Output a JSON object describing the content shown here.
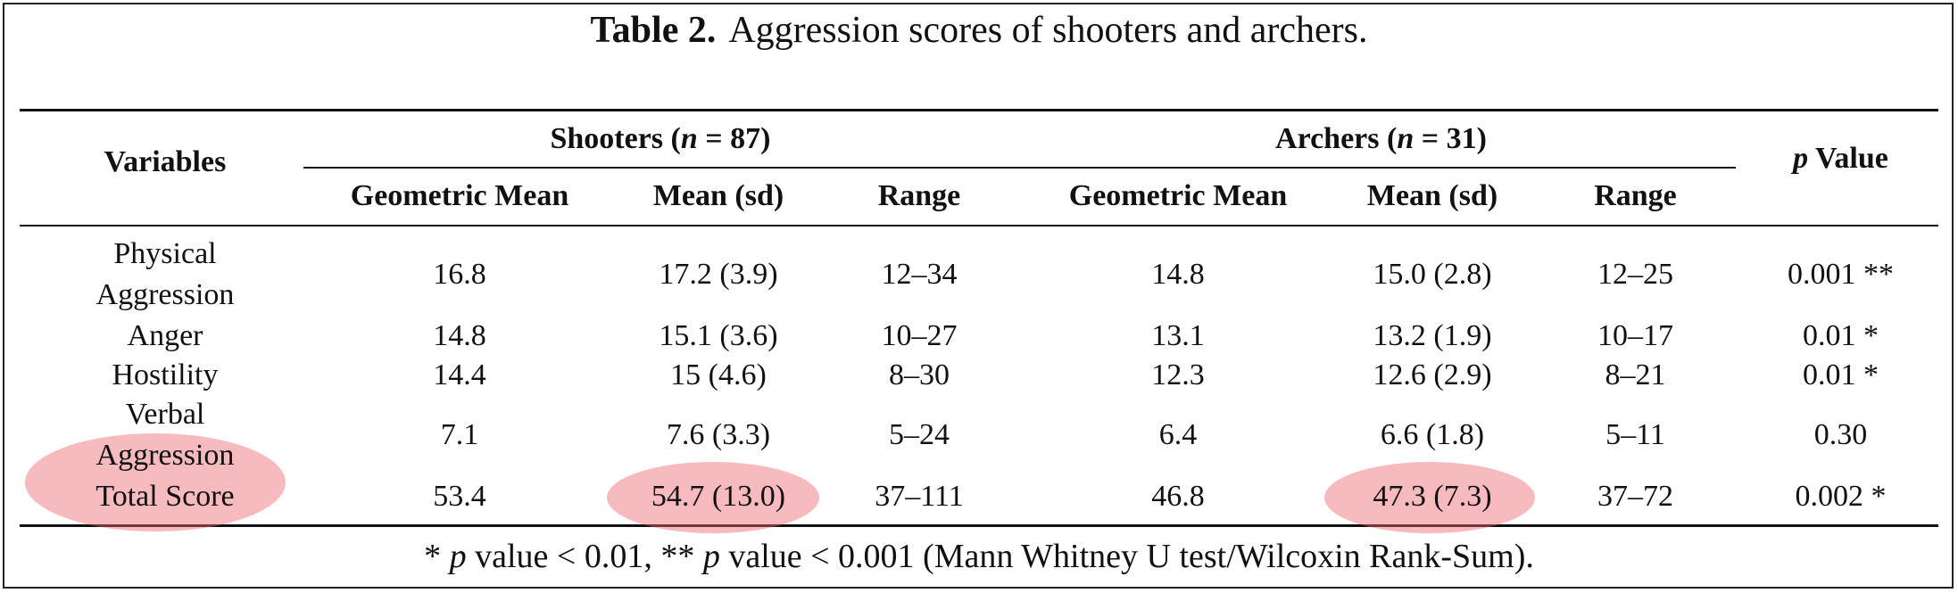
{
  "caption": {
    "label": "Table 2.",
    "text": "Aggression scores of shooters and archers."
  },
  "headers": {
    "variables": "Variables",
    "shooters": {
      "prefix": "Shooters (",
      "n_symbol": "n",
      "suffix": " = 87)"
    },
    "archers": {
      "prefix": "Archers (",
      "n_symbol": "n",
      "suffix": " = 31)"
    },
    "p_value": {
      "symbol": "p",
      "text": " Value"
    },
    "sub": [
      "Geometric Mean",
      "Mean (sd)",
      "Range",
      "Geometric Mean",
      "Mean (sd)",
      "Range"
    ]
  },
  "rows": [
    {
      "variable_line1": "Physical",
      "variable_line2": "Aggression",
      "cells": [
        "16.8",
        "17.2 (3.9)",
        "12–34",
        "14.8",
        "15.0 (2.8)",
        "12–25",
        "0.001 **"
      ]
    },
    {
      "variable_line1": "Anger",
      "cells": [
        "14.8",
        "15.1 (3.6)",
        "10–27",
        "13.1",
        "13.2 (1.9)",
        "10–17",
        "0.01 *"
      ]
    },
    {
      "variable_line1": "Hostility",
      "cells": [
        "14.4",
        "15 (4.6)",
        "8–30",
        "12.3",
        "12.6 (2.9)",
        "8–21",
        "0.01 *"
      ]
    },
    {
      "variable_line1": "Verbal",
      "variable_line2": "Aggression",
      "cells": [
        "7.1",
        "7.6 (3.3)",
        "5–24",
        "6.4",
        "6.6 (1.8)",
        "5–11",
        "0.30"
      ]
    },
    {
      "variable_line1": "Total Score",
      "cells": [
        "53.4",
        "54.7 (13.0)",
        "37–111",
        "46.8",
        "47.3 (7.3)",
        "37–72",
        "0.002 *"
      ]
    }
  ],
  "footnote": {
    "part1_symbol": "p",
    "part1_text": " value < 0.01, ** ",
    "part2_symbol": "p",
    "part2_text": " value < 0.001 (Mann Whitney U test/Wilcoxin Rank-Sum).",
    "lead": "* "
  },
  "highlight_color": "#ee6670"
}
